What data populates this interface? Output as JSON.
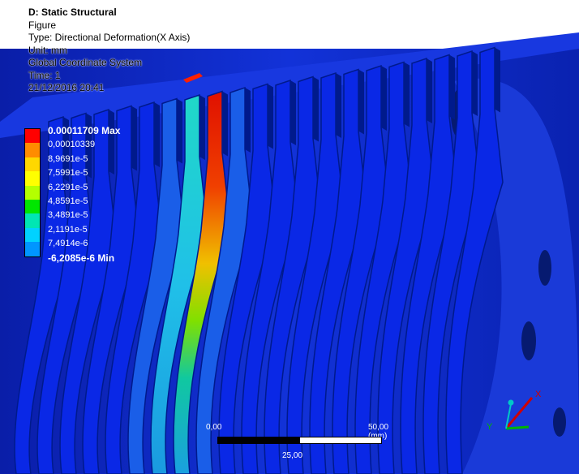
{
  "header": {
    "title": "D: Static Structural",
    "line1": "Figure",
    "line2": "Type: Directional Deformation(X Axis)",
    "line3": "Unit: mm",
    "line4": "Global Coordinate System",
    "line5": "Time: 1",
    "line6": "21/12/2016 20:41"
  },
  "legend": {
    "entries": [
      {
        "label": "0.00011709 Max",
        "color": "#ff0000"
      },
      {
        "label": "0,00010339",
        "color": "#ff8c00"
      },
      {
        "label": "8,9691e-5",
        "color": "#ffd700"
      },
      {
        "label": "7,5991e-5",
        "color": "#ffff00"
      },
      {
        "label": "6,2291e-5",
        "color": "#b4ff00"
      },
      {
        "label": "4,8591e-5",
        "color": "#00e600"
      },
      {
        "label": "3,4891e-5",
        "color": "#00e6b4"
      },
      {
        "label": "2,1191e-5",
        "color": "#00d2ff"
      },
      {
        "label": "7,4914e-6",
        "color": "#0096ff"
      },
      {
        "label": "-6,2085e-6 Min",
        "color": "#0000ff"
      }
    ]
  },
  "scale": {
    "left_label": "0,00",
    "right_label": "50,00 (mm)",
    "mid_label": "25,00"
  },
  "triad": {
    "x_label": "X",
    "y_label": "Y",
    "x_color": "#d00000",
    "y_color": "#00b400",
    "z_color": "#00c8c8"
  },
  "colors": {
    "min_blue": "#0a28e6",
    "dark_blue": "#001a8c",
    "cyan": "#1ab4dc",
    "hot": "#e02000"
  }
}
